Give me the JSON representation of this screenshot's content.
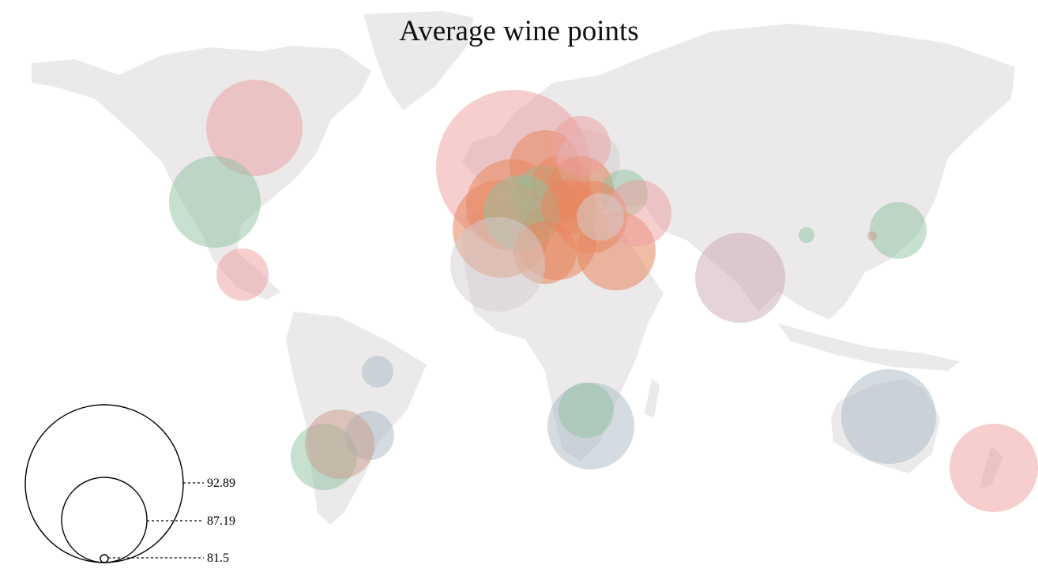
{
  "title": "Average wine points",
  "colors": {
    "land": "#ebe9ea",
    "pink": "#ee9d9d",
    "green": "#8fc1a0",
    "orange": "#e8875e",
    "mauve": "#c9a7b2",
    "slate": "#a9b9c4",
    "grey": "#d3ced0",
    "tan": "#c99d8b"
  },
  "legend": {
    "values": [
      "92.89",
      "87.19",
      "81.5"
    ]
  },
  "bubble_groups": {
    "north_america": [
      "pink",
      "green",
      "pink"
    ],
    "south_america": [
      "slate",
      "green",
      "slate",
      "tan"
    ],
    "europe_mediterranean": [
      "pink",
      "orange",
      "orange",
      "green",
      "orange",
      "grey",
      "orange",
      "green",
      "orange",
      "orange",
      "orange",
      "orange",
      "green",
      "pink",
      "orange",
      "pink",
      "orange",
      "grey",
      "grey"
    ],
    "africa": [
      "slate",
      "green"
    ],
    "asia": [
      "mauve",
      "green",
      "green",
      "tan"
    ],
    "oceania": [
      "slate",
      "pink"
    ]
  }
}
